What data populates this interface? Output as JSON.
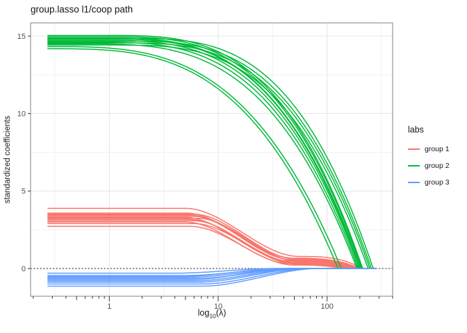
{
  "title": "group.lasso l1/coop path",
  "axes": {
    "x": {
      "label_prefix": "log",
      "label_subscript": "10",
      "label_suffix": "(λ)"
    },
    "y": {
      "label": "standardized coefficients"
    }
  },
  "legend": {
    "title": "labs",
    "entries": [
      {
        "label": "group 1",
        "color": "#F8766D"
      },
      {
        "label": "group 2",
        "color": "#00BA38"
      },
      {
        "label": "group 3",
        "color": "#619CFF"
      }
    ]
  },
  "chart_data": {
    "type": "line",
    "title": "group.lasso l1/coop path",
    "xlabel": "log10(lambda)",
    "ylabel": "standardized coefficients",
    "x_scale": "log10",
    "x_range_lambda": [
      0.189,
      400
    ],
    "y_range": [
      -1.79,
      15.85
    ],
    "lambda_path_range": [
      0.27,
      285
    ],
    "x_ticks": [
      {
        "value": 1,
        "label": "1"
      },
      {
        "value": 10,
        "label": "10"
      },
      {
        "value": 100,
        "label": "100"
      }
    ],
    "x_minor_ticks_small": [
      0.2,
      0.3,
      0.4,
      0.6,
      0.7,
      0.8,
      0.9,
      2,
      3,
      4,
      6,
      7,
      8,
      9,
      20,
      30,
      40,
      60,
      70,
      80,
      90,
      200,
      300,
      400
    ],
    "x_minor_ticks_medium": [
      0.5,
      5,
      50
    ],
    "y_ticks": [
      {
        "value": 0,
        "label": "0"
      },
      {
        "value": 5,
        "label": "5"
      },
      {
        "value": 10,
        "label": "10"
      },
      {
        "value": 15,
        "label": "15"
      }
    ],
    "grid": {
      "x_major_lambda": [
        1,
        10,
        100
      ],
      "x_minor_lambda": [
        0.3162,
        3.162,
        31.62,
        316.2
      ],
      "y_major": [
        0,
        5,
        10,
        15
      ],
      "y_minor": [
        2.5,
        7.5,
        12.5
      ],
      "major_color": "#e5e5e5",
      "minor_color": "#f1f1f1"
    },
    "zero_reference_line": {
      "y": 0,
      "style": "dotted",
      "color": "#1a1a1a"
    },
    "panel": {
      "border_color": "#8c8c8c",
      "background": "#ffffff"
    },
    "groups": [
      {
        "name": "group 1",
        "color": "#F8766D",
        "model": "decline_plateau_zero",
        "lines": [
          {
            "v0": 3.88,
            "k1": 5.0,
            "k2": 55,
            "p0": 0.78,
            "z": 210
          },
          {
            "v0": 3.58,
            "k1": 5.0,
            "k2": 50,
            "p0": 0.66,
            "z": 198
          },
          {
            "v0": 3.5,
            "k1": 6.0,
            "k2": 52,
            "p0": 0.6,
            "z": 192
          },
          {
            "v0": 3.44,
            "k1": 5.5,
            "k2": 48,
            "p0": 0.56,
            "z": 186
          },
          {
            "v0": 3.36,
            "k1": 6.0,
            "k2": 50,
            "p0": 0.52,
            "z": 178
          },
          {
            "v0": 3.3,
            "k1": 5.0,
            "k2": 45,
            "p0": 0.48,
            "z": 172
          },
          {
            "v0": 3.24,
            "k1": 6.5,
            "k2": 55,
            "p0": 0.44,
            "z": 166
          },
          {
            "v0": 3.16,
            "k1": 5.5,
            "k2": 50,
            "p0": 0.4,
            "z": 160
          },
          {
            "v0": 3.08,
            "k1": 6.0,
            "k2": 48,
            "p0": 0.36,
            "z": 154
          },
          {
            "v0": 3.0,
            "k1": 5.0,
            "k2": 45,
            "p0": 0.32,
            "z": 148
          },
          {
            "v0": 2.9,
            "k1": 6.0,
            "k2": 52,
            "p0": 0.28,
            "z": 142
          },
          {
            "v0": 2.72,
            "k1": 5.5,
            "k2": 50,
            "p0": 0.22,
            "z": 136
          }
        ]
      },
      {
        "name": "group 2",
        "color": "#00BA38",
        "model": "power_decay_to_zero",
        "lines": [
          {
            "v0": 14.18,
            "k": 0.27,
            "z": 126
          },
          {
            "v0": 14.32,
            "k": 0.27,
            "z": 135
          },
          {
            "v0": 14.5,
            "k": 0.55,
            "z": 188
          },
          {
            "v0": 14.62,
            "k": 0.65,
            "z": 193
          },
          {
            "v0": 14.72,
            "k": 0.75,
            "z": 198
          },
          {
            "v0": 14.8,
            "k": 0.85,
            "z": 200
          },
          {
            "v0": 14.88,
            "k": 0.8,
            "z": 205
          },
          {
            "v0": 14.96,
            "k": 0.9,
            "z": 209
          },
          {
            "v0": 15.04,
            "k": 0.95,
            "z": 212
          },
          {
            "v0": 14.42,
            "k": 1.05,
            "z": 238
          },
          {
            "v0": 14.56,
            "k": 1.15,
            "z": 247
          },
          {
            "v0": 14.68,
            "k": 1.25,
            "z": 255
          },
          {
            "v0": 14.85,
            "k": 1.4,
            "z": 265
          }
        ]
      },
      {
        "name": "group 3",
        "color": "#619CFF",
        "model": "negative_rise_to_zero",
        "lines": [
          {
            "v0": -0.3,
            "k1": 4.0,
            "k2": 35
          },
          {
            "v0": -0.45,
            "k1": 5.0,
            "k2": 45
          },
          {
            "v0": -0.52,
            "k1": 4.5,
            "k2": 40
          },
          {
            "v0": -0.58,
            "k1": 5.0,
            "k2": 50
          },
          {
            "v0": -0.65,
            "k1": 6.0,
            "k2": 55
          },
          {
            "v0": -0.72,
            "k1": 5.5,
            "k2": 48
          },
          {
            "v0": -0.8,
            "k1": 6.0,
            "k2": 60
          },
          {
            "v0": -0.88,
            "k1": 6.5,
            "k2": 65
          },
          {
            "v0": -1.0,
            "k1": 7.0,
            "k2": 75
          },
          {
            "v0": -1.14,
            "k1": 7.0,
            "k2": 85
          }
        ]
      }
    ]
  }
}
